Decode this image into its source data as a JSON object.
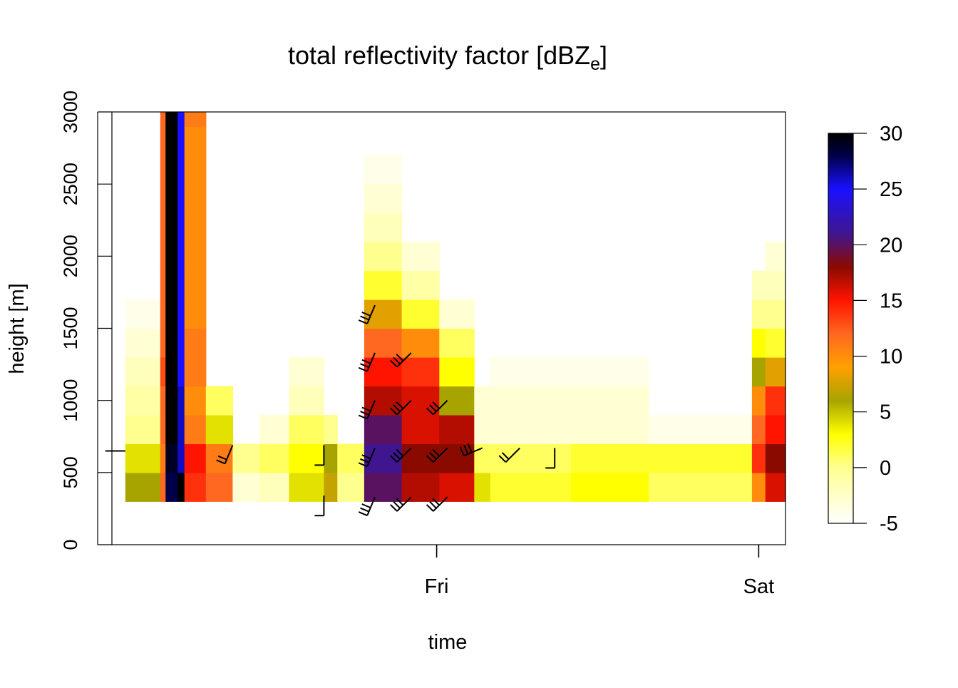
{
  "chart_data": {
    "type": "heatmap",
    "title": {
      "main": "total reflectivity factor [dBZ",
      "sub": "e",
      "close": "]"
    },
    "xlabel": "time",
    "ylabel": "height [m]",
    "x_ticks": [
      "Fri",
      "Sat"
    ],
    "y_ticks": [
      "0",
      "500",
      "1000",
      "1500",
      "2000",
      "2500",
      "3000"
    ],
    "ylim": [
      0,
      3000
    ],
    "x_range_hours": [
      -15.2,
      35.0
    ],
    "colorbar": {
      "ticks": [
        "-5",
        "0",
        "5",
        "10",
        "15",
        "20",
        "25",
        "30"
      ],
      "range": [
        -5,
        30
      ],
      "stops": [
        {
          "v": -5,
          "c": "#ffffff"
        },
        {
          "v": 0,
          "c": "#ffff90"
        },
        {
          "v": 3,
          "c": "#ffff00"
        },
        {
          "v": 6,
          "c": "#a7a400"
        },
        {
          "v": 9,
          "c": "#ffa000"
        },
        {
          "v": 12,
          "c": "#ff6820"
        },
        {
          "v": 15,
          "c": "#ff1400"
        },
        {
          "v": 18,
          "c": "#8b0a00"
        },
        {
          "v": 21,
          "c": "#3f1690"
        },
        {
          "v": 25,
          "c": "#1a10ff"
        },
        {
          "v": 28,
          "c": "#000048"
        },
        {
          "v": 30,
          "c": "#000000"
        }
      ]
    },
    "height_bins_m": [
      [
        300,
        500
      ],
      [
        500,
        700
      ],
      [
        700,
        900
      ],
      [
        900,
        1100
      ],
      [
        1100,
        1300
      ],
      [
        1300,
        1500
      ],
      [
        1500,
        1700
      ],
      [
        1700,
        1900
      ],
      [
        1900,
        2100
      ],
      [
        2100,
        2300
      ],
      [
        2300,
        2500
      ],
      [
        2500,
        2700
      ],
      [
        2700,
        2900
      ],
      [
        2900,
        3000
      ]
    ],
    "segments": [
      {
        "t": [
          -14.2,
          -11.6
        ],
        "dbz": [
          6,
          4,
          0,
          -1,
          -2,
          -3,
          -4,
          null,
          null,
          null,
          null,
          null,
          null,
          null
        ]
      },
      {
        "t": [
          -11.6,
          -11.2
        ],
        "dbz": [
          12,
          11,
          12,
          12,
          13,
          12,
          12,
          12,
          12,
          12,
          12,
          12,
          12,
          12
        ]
      },
      {
        "t": [
          -11.2,
          -10.3
        ],
        "dbz": [
          28,
          29,
          30,
          30,
          30,
          30,
          30,
          30,
          30,
          30,
          30,
          30,
          30,
          30
        ]
      },
      {
        "t": [
          -10.3,
          -9.8
        ],
        "dbz": [
          30,
          26,
          26,
          26,
          25,
          25,
          25,
          25,
          25,
          25,
          25,
          25,
          25,
          25
        ]
      },
      {
        "t": [
          -9.8,
          -8.2
        ],
        "dbz": [
          14,
          15,
          11,
          10,
          11,
          11,
          10,
          10,
          10,
          10,
          10,
          10,
          10,
          11
        ]
      },
      {
        "t": [
          -8.2,
          -6.2
        ],
        "dbz": [
          12,
          11,
          4,
          1,
          null,
          null,
          null,
          null,
          null,
          null,
          null,
          null,
          null,
          null
        ]
      },
      {
        "t": [
          -6.2,
          -4.2
        ],
        "dbz": [
          -3,
          0,
          null,
          null,
          null,
          null,
          null,
          null,
          null,
          null,
          null,
          null,
          null,
          null
        ]
      },
      {
        "t": [
          -4.2,
          -2.0
        ],
        "dbz": [
          -2,
          1,
          -3,
          null,
          null,
          null,
          null,
          null,
          null,
          null,
          null,
          null,
          null,
          null
        ]
      },
      {
        "t": [
          -2.0,
          0.6
        ],
        "dbz": [
          4,
          3,
          1,
          -2,
          -3,
          null,
          null,
          null,
          null,
          null,
          null,
          null,
          null,
          null
        ]
      },
      {
        "t": [
          0.6,
          1.6
        ],
        "dbz": [
          7,
          6,
          0,
          null,
          null,
          null,
          null,
          null,
          null,
          null,
          null,
          null,
          null,
          null
        ]
      },
      {
        "t": [
          1.6,
          3.6
        ],
        "dbz": [
          0,
          1,
          null,
          null,
          null,
          null,
          null,
          null,
          null,
          null,
          null,
          null,
          null,
          null
        ]
      },
      {
        "t": [
          3.6,
          6.4
        ],
        "dbz": [
          20,
          21,
          20,
          17,
          15,
          12,
          8,
          2,
          0,
          -2,
          -3,
          -4,
          null,
          null
        ]
      },
      {
        "t": [
          6.4,
          9.2
        ],
        "dbz": [
          17,
          18,
          16,
          16,
          14,
          10,
          2,
          -1,
          -3,
          null,
          null,
          null,
          null,
          null
        ]
      },
      {
        "t": [
          9.2,
          11.8
        ],
        "dbz": [
          16,
          18,
          17,
          6,
          3,
          1,
          -3,
          null,
          null,
          null,
          null,
          null,
          null,
          null
        ]
      },
      {
        "t": [
          11.8,
          13.0
        ],
        "dbz": [
          4,
          1,
          -3,
          -3,
          null,
          null,
          null,
          null,
          null,
          null,
          null,
          null,
          null,
          null
        ]
      },
      {
        "t": [
          13.0,
          19.0
        ],
        "dbz": [
          2,
          1,
          -3,
          -3,
          -4,
          null,
          null,
          null,
          null,
          null,
          null,
          null,
          null,
          null
        ]
      },
      {
        "t": [
          19.0,
          24.8
        ],
        "dbz": [
          3,
          2,
          -3,
          -3,
          -4,
          null,
          null,
          null,
          null,
          null,
          null,
          null,
          null,
          null
        ]
      },
      {
        "t": [
          24.8,
          32.5
        ],
        "dbz": [
          1,
          2,
          -4,
          null,
          null,
          null,
          null,
          null,
          null,
          null,
          null,
          null,
          null,
          null
        ]
      },
      {
        "t": [
          32.5,
          33.5
        ],
        "dbz": [
          10,
          14,
          12,
          10,
          6,
          3,
          0,
          -2,
          null,
          null,
          null,
          null,
          null,
          null
        ]
      },
      {
        "t": [
          33.5,
          35.0
        ],
        "dbz": [
          16,
          18,
          15,
          14,
          8,
          2,
          0,
          -2,
          -3,
          null,
          null,
          null,
          null,
          null
        ]
      }
    ],
    "wind_barbs": [
      {
        "t": -14.2,
        "h_m": 650,
        "dir": "W",
        "barbs": 0
      },
      {
        "t": -6.2,
        "h_m": 690,
        "dir": "SSW",
        "barbs": 2
      },
      {
        "t": 0.6,
        "h_m": 690,
        "dir": "S",
        "barbs": 1
      },
      {
        "t": 0.6,
        "h_m": 340,
        "dir": "S",
        "barbs": 1
      },
      {
        "t": 4.4,
        "h_m": 1660,
        "dir": "SSW",
        "barbs": 3
      },
      {
        "t": 4.4,
        "h_m": 1330,
        "dir": "SSW",
        "barbs": 3
      },
      {
        "t": 4.4,
        "h_m": 1000,
        "dir": "SSW",
        "barbs": 3
      },
      {
        "t": 4.4,
        "h_m": 670,
        "dir": "SSW",
        "barbs": 3
      },
      {
        "t": 4.4,
        "h_m": 330,
        "dir": "SSW",
        "barbs": 3
      },
      {
        "t": 7.1,
        "h_m": 1330,
        "dir": "SW",
        "barbs": 3
      },
      {
        "t": 7.1,
        "h_m": 1000,
        "dir": "SW",
        "barbs": 3
      },
      {
        "t": 7.1,
        "h_m": 670,
        "dir": "SW",
        "barbs": 3
      },
      {
        "t": 7.1,
        "h_m": 330,
        "dir": "SW",
        "barbs": 3
      },
      {
        "t": 9.8,
        "h_m": 1000,
        "dir": "SW",
        "barbs": 3
      },
      {
        "t": 9.8,
        "h_m": 670,
        "dir": "SW",
        "barbs": 3
      },
      {
        "t": 9.8,
        "h_m": 330,
        "dir": "SW",
        "barbs": 3
      },
      {
        "t": 12.4,
        "h_m": 670,
        "dir": "WSW",
        "barbs": 3
      },
      {
        "t": 15.2,
        "h_m": 670,
        "dir": "SW",
        "barbs": 2
      },
      {
        "t": 17.8,
        "h_m": 670,
        "dir": "S",
        "barbs": 1
      }
    ]
  }
}
